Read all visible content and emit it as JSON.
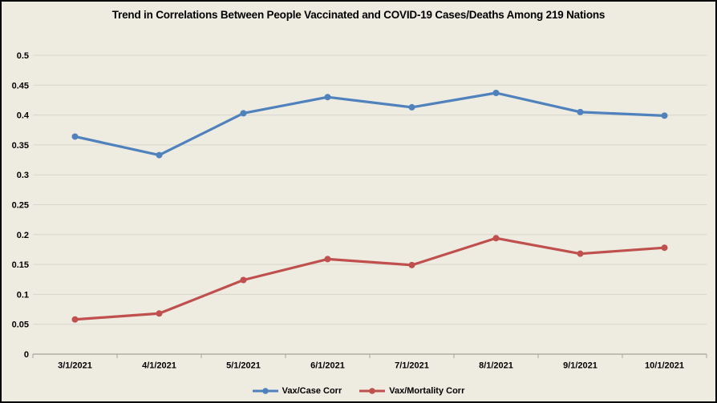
{
  "chart_data": {
    "type": "line",
    "title": "Trend in Correlations Between People Vaccinated and COVID-19 Cases/Deaths Among 219 Nations",
    "categories": [
      "3/1/2021",
      "4/1/2021",
      "5/1/2021",
      "6/1/2021",
      "7/1/2021",
      "8/1/2021",
      "9/1/2021",
      "10/1/2021"
    ],
    "series": [
      {
        "name": "Vax/Case Corr",
        "color": "#4F81BD",
        "marker": "circle",
        "values": [
          0.364,
          0.333,
          0.403,
          0.43,
          0.413,
          0.437,
          0.405,
          0.399
        ]
      },
      {
        "name": "Vax/Mortality Corr",
        "color": "#C0504D",
        "marker": "circle",
        "values": [
          0.058,
          0.068,
          0.124,
          0.159,
          0.149,
          0.194,
          0.168,
          0.178
        ]
      }
    ],
    "xlabel": "",
    "ylabel": "",
    "ylim": [
      0,
      0.5
    ],
    "ytick_step": 0.05,
    "grid": true,
    "legend_position": "bottom"
  },
  "style": {
    "background_color": "#EEEBE1",
    "frame_color": "#000000",
    "gridline_color": "#D8D6CE",
    "axis_line_color": "#A6A49C",
    "tick_label_color": "#000000"
  }
}
